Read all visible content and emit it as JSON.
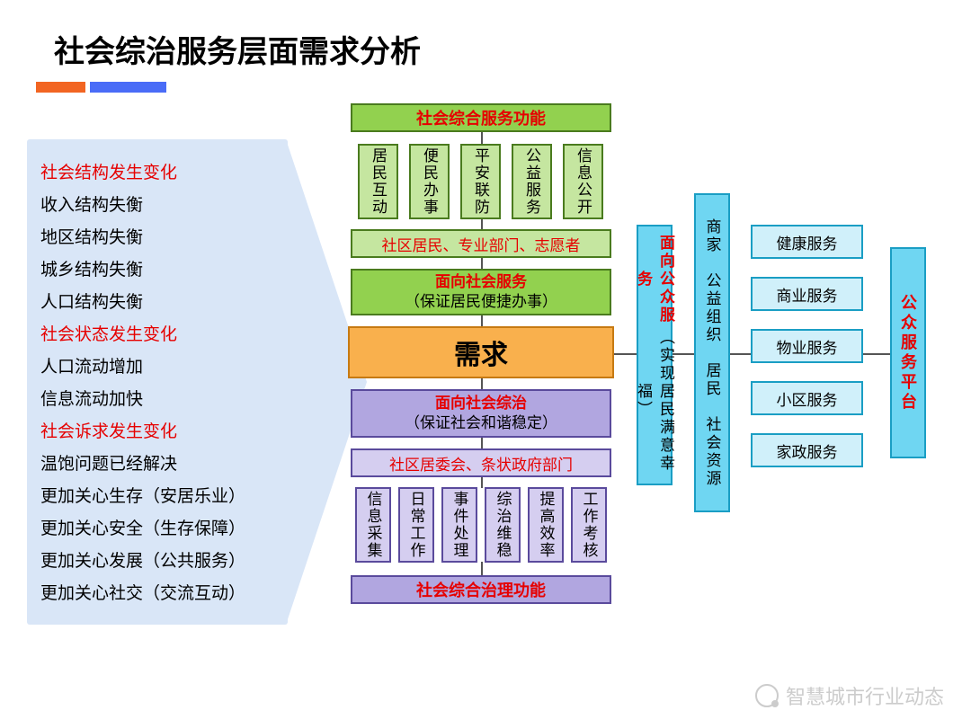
{
  "title": "社会综治服务层面需求分析",
  "left": {
    "items": [
      {
        "t": "社会结构发生变化",
        "c": "red"
      },
      {
        "t": "收入结构失衡",
        "c": "blk"
      },
      {
        "t": "地区结构失衡",
        "c": "blk"
      },
      {
        "t": "城乡结构失衡",
        "c": "blk"
      },
      {
        "t": "人口结构失衡",
        "c": "blk"
      },
      {
        "t": "社会状态发生变化",
        "c": "red"
      },
      {
        "t": "人口流动增加",
        "c": "blk"
      },
      {
        "t": "信息流动加快",
        "c": "blk"
      },
      {
        "t": "社会诉求发生变化",
        "c": "red"
      },
      {
        "t": "温饱问题已经解决",
        "c": "blk"
      },
      {
        "t": "更加关心生存（安居乐业）",
        "c": "blk"
      },
      {
        "t": "更加关心安全（生存保障）",
        "c": "blk"
      },
      {
        "t": "更加关心发展（公共服务）",
        "c": "blk"
      },
      {
        "t": "更加关心社交（交流互动）",
        "c": "blk"
      }
    ]
  },
  "top": {
    "title": "社会综合服务功能",
    "subs": [
      "居民互动",
      "便民办事",
      "平安联防",
      "公益服务",
      "信息公开"
    ],
    "row": "社区居民、专业部门、志愿者"
  },
  "midTop": {
    "l1": "面向社会服务",
    "l2": "（保证居民便捷办事）"
  },
  "center": "需求",
  "midBot": {
    "l1": "面向社会综治",
    "l2": "（保证社会和谐稳定）"
  },
  "bot": {
    "row": "社区居委会、条状政府部门",
    "subs": [
      "信息采集",
      "日常工作",
      "事件处理",
      "综治维稳",
      "提高效率",
      "工作考核"
    ],
    "title": "社会综合治理功能"
  },
  "rightCol1": {
    "l1": "面向公众服务",
    "l2": "（实现居民满意幸福）"
  },
  "rightCol2": "商家　公益组织　居民　社会资源",
  "services": [
    "健康服务",
    "商业服务",
    "物业服务",
    "小区服务",
    "家政服务"
  ],
  "platform": "公众服务平台",
  "colors": {
    "green": "#92d14f",
    "greenL": "#c5e6a0",
    "greenB": "#4a7b1e",
    "orange": "#f9b04d",
    "orangeB": "#c77a12",
    "purple": "#b1a6e0",
    "purpleL": "#d5cef0",
    "purpleB": "#5a4a9c",
    "cyan": "#6fd6f2",
    "cyanL": "#d0f0fa",
    "cyanB": "#1a9ec4",
    "red": "#e60000",
    "arrow": "#d9e6f7"
  },
  "watermark": "智慧城市行业动态"
}
